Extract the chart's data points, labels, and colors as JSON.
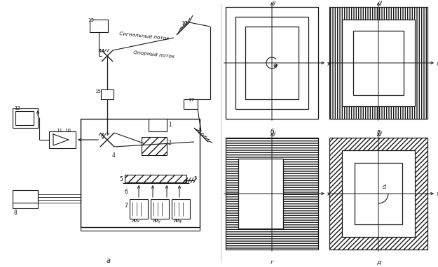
{
  "bg_color": "#ffffff",
  "label_a": "а",
  "label_b": "б",
  "label_v": "в",
  "label_g": "г",
  "label_d": "д",
  "text_signal": "Сигнальный поток",
  "text_oporn": "Опорный поток",
  "font_color": "#1a1a1a",
  "line_color": "#1a1a1a"
}
